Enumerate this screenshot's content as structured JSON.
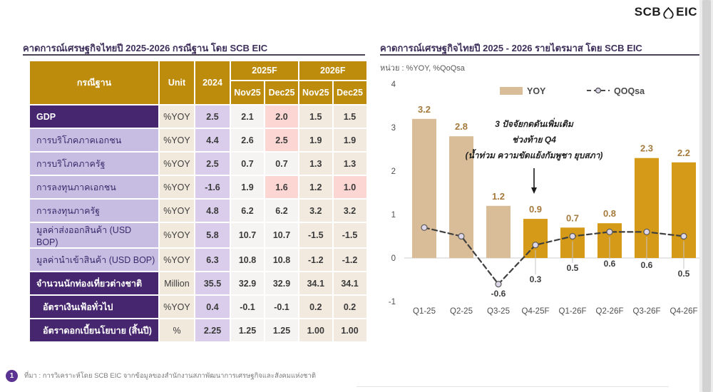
{
  "logo": {
    "scb": "SCB",
    "eic": "EIC"
  },
  "table_section": {
    "title": "คาดการณ์เศรษฐกิจไทยปี 2025-2026 กรณีฐาน โดย SCB EIC",
    "header": {
      "scenario": "กรณีฐาน",
      "unit": "Unit",
      "year2024": "2024",
      "group_2025": "2025F",
      "group_2026": "2026F",
      "sub": [
        "Nov25",
        "Dec25",
        "Nov25",
        "Dec25"
      ]
    },
    "colors": {
      "header_gold": "#bd8c0c",
      "dark_purple": "#46266e",
      "lavender": "#c7bde2",
      "col_2024_purple": "#d9cdeb",
      "unit_beige": "#f2e9dd",
      "pink_highlight": "#fcd6d3"
    },
    "rows": [
      {
        "label": "GDP",
        "unit": "%YOY",
        "y2024": "2.5",
        "vals": [
          "2.1",
          "2.0",
          "1.5",
          "1.5"
        ],
        "style": "dark",
        "pink": [
          1
        ],
        "indent": false
      },
      {
        "label": "การบริโภคภาคเอกชน",
        "unit": "%YOY",
        "y2024": "4.4",
        "vals": [
          "2.6",
          "2.5",
          "1.9",
          "1.9"
        ],
        "style": "light",
        "pink": [
          1
        ],
        "indent": false
      },
      {
        "label": "การบริโภคภาครัฐ",
        "unit": "%YOY",
        "y2024": "2.5",
        "vals": [
          "0.7",
          "0.7",
          "1.3",
          "1.3"
        ],
        "style": "light",
        "pink": [],
        "indent": false
      },
      {
        "label": "การลงทุนภาคเอกชน",
        "unit": "%YOY",
        "y2024": "-1.6",
        "vals": [
          "1.9",
          "1.6",
          "1.2",
          "1.0"
        ],
        "style": "light",
        "pink": [
          1,
          3
        ],
        "indent": false
      },
      {
        "label": "การลงทุนภาครัฐ",
        "unit": "%YOY",
        "y2024": "4.8",
        "vals": [
          "6.2",
          "6.2",
          "3.2",
          "3.2"
        ],
        "style": "light",
        "pink": [],
        "indent": false
      },
      {
        "label": "มูลค่าส่งออกสินค้า (USD BOP)",
        "unit": "%YOY",
        "y2024": "5.8",
        "vals": [
          "10.7",
          "10.7",
          "-1.5",
          "-1.5"
        ],
        "style": "light",
        "pink": [],
        "indent": false
      },
      {
        "label": "มูลค่านำเข้าสินค้า (USD BOP)",
        "unit": "%YOY",
        "y2024": "6.3",
        "vals": [
          "10.8",
          "10.8",
          "-1.2",
          "-1.2"
        ],
        "style": "light",
        "pink": [],
        "indent": false
      },
      {
        "label": "จำนวนนักท่องเที่ยวต่างชาติ",
        "unit": "Million",
        "y2024": "35.5",
        "vals": [
          "32.9",
          "32.9",
          "34.1",
          "34.1"
        ],
        "style": "dark",
        "pink": [],
        "indent": false
      },
      {
        "label": "อัตราเงินเฟ้อทั่วไป",
        "unit": "%YOY",
        "y2024": "0.4",
        "vals": [
          "-0.1",
          "-0.1",
          "0.2",
          "0.2"
        ],
        "style": "dark",
        "pink": [],
        "indent": true
      },
      {
        "label": "อัตราดอกเบี้ยนโยบาย (สิ้นปี)",
        "unit": "%",
        "y2024": "2.25",
        "vals": [
          "1.25",
          "1.25",
          "1.00",
          "1.00"
        ],
        "style": "dark",
        "pink": [],
        "indent": true
      }
    ]
  },
  "chart_section": {
    "title": "คาดการณ์เศรษฐกิจไทยปี 2025 - 2026 รายไตรมาส โดย SCB EIC",
    "unit_note": "หน่วย : %YOY, %QoQsa",
    "annotation": {
      "line1": "3 ปัจจัยกดดันเพิ่มเติม",
      "line2": "ช่วงท้าย Q4",
      "line3": "(น้ำท่วม ความขัดแย้งกัมพูชา ยุบสภา)"
    }
  },
  "chart_data": {
    "type": "bar",
    "title": "คาดการณ์เศรษฐกิจไทยปี 2025 - 2026 รายไตรมาส โดย SCB EIC",
    "xlabel": "",
    "ylabel": "%YOY, %QoQsa",
    "ylim": [
      -1,
      4
    ],
    "yticks": [
      4,
      3,
      2,
      1,
      0,
      -1
    ],
    "grid": false,
    "legend_position": "top",
    "legend": [
      "YOY",
      "QOQsa"
    ],
    "categories": [
      "Q1-25",
      "Q2-25",
      "Q3-25",
      "Q4-25F",
      "Q1-26F",
      "Q2-26F",
      "Q3-26F",
      "Q4-26F"
    ],
    "series": [
      {
        "name": "YOY",
        "type": "bar",
        "values": [
          3.2,
          2.8,
          1.2,
          0.9,
          0.7,
          0.8,
          2.3,
          2.2
        ]
      },
      {
        "name": "QOQsa",
        "type": "line",
        "values": [
          0.7,
          0.5,
          -0.6,
          0.3,
          0.5,
          0.6,
          0.6,
          0.5
        ]
      }
    ],
    "bar_labels": [
      "3.2",
      "2.8",
      "1.2",
      "0.9",
      "0.7",
      "0.8",
      "2.3",
      "2.2"
    ],
    "line_labels": [
      "",
      "",
      "-0.6",
      "0.3",
      "0.5",
      "0.6",
      "0.6",
      "0.5"
    ],
    "actual_count": 3,
    "colors": {
      "bar_actual": "#d9bd98",
      "bar_forecast": "#d49a18",
      "line": "#3f3f3f",
      "marker_fill": "#ded7ea",
      "bar_label": "#a57a3c",
      "line_label": "#3d3d3d"
    }
  },
  "footer": {
    "number": "1",
    "text": "ที่มา : การวิเคราะห์โดย SCB EIC จากข้อมูลของสำนักงานสภาพัฒนาการเศรษฐกิจและสังคมแห่งชาติ"
  }
}
